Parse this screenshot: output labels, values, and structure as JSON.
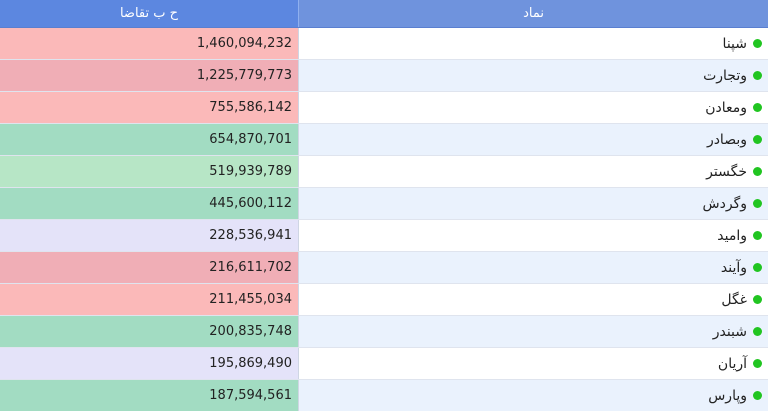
{
  "headers": {
    "demand": "ح ب تقاضا",
    "symbol": "نماد"
  },
  "rows": [
    {
      "symbol": "شپنا",
      "demand": "1,460,094,232",
      "demand_color": "#fbb9b9"
    },
    {
      "symbol": "وتجارت",
      "demand": "1,225,779,773",
      "demand_color": "#f0aeb6"
    },
    {
      "symbol": "ومعادن",
      "demand": "755,586,142",
      "demand_color": "#fbb9b9"
    },
    {
      "symbol": "وبصادر",
      "demand": "654,870,701",
      "demand_color": "#a2dcc2"
    },
    {
      "symbol": "خگستر",
      "demand": "519,939,789",
      "demand_color": "#b7e6c6"
    },
    {
      "symbol": "وگردش",
      "demand": "445,600,112",
      "demand_color": "#a2dcc2"
    },
    {
      "symbol": "وامید",
      "demand": "228,536,941",
      "demand_color": "#e4e3f9"
    },
    {
      "symbol": "وآیند",
      "demand": "216,611,702",
      "demand_color": "#f0aeb6"
    },
    {
      "symbol": "غگل",
      "demand": "211,455,034",
      "demand_color": "#fbb9b9"
    },
    {
      "symbol": "شبندر",
      "demand": "200,835,748",
      "demand_color": "#a2dcc2"
    },
    {
      "symbol": "آریان",
      "demand": "195,869,490",
      "demand_color": "#e4e3f9"
    },
    {
      "symbol": "وپارس",
      "demand": "187,594,561",
      "demand_color": "#a2dcc2"
    }
  ],
  "status_dot_color": "#21c521"
}
